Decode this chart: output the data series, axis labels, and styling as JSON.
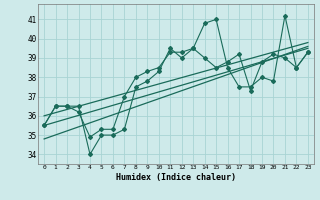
{
  "xlabel": "Humidex (Indice chaleur)",
  "bg_color": "#ceeaea",
  "grid_color": "#a8d4d4",
  "line_color": "#1a6b5a",
  "ylim": [
    33.5,
    41.8
  ],
  "xlim": [
    -0.5,
    23.5
  ],
  "yticks": [
    34,
    35,
    36,
    37,
    38,
    39,
    40,
    41
  ],
  "xticks": [
    0,
    1,
    2,
    3,
    4,
    5,
    6,
    7,
    8,
    9,
    10,
    11,
    12,
    13,
    14,
    15,
    16,
    17,
    18,
    19,
    20,
    21,
    22,
    23
  ],
  "series1": [
    35.5,
    36.5,
    36.5,
    36.5,
    34.0,
    35.0,
    35.0,
    35.3,
    37.5,
    37.8,
    38.3,
    39.5,
    39.0,
    39.5,
    40.8,
    41.0,
    38.5,
    37.5,
    37.5,
    38.0,
    37.8,
    41.2,
    38.5,
    39.3
  ],
  "series2": [
    35.5,
    36.5,
    36.5,
    36.2,
    34.9,
    35.3,
    35.3,
    37.0,
    38.0,
    38.3,
    38.5,
    39.3,
    39.3,
    39.5,
    39.0,
    38.5,
    38.8,
    39.2,
    37.3,
    38.8,
    39.2,
    39.0,
    38.5,
    39.3
  ],
  "trend1_x": [
    0,
    23
  ],
  "trend1_y": [
    35.5,
    39.5
  ],
  "trend2_x": [
    0,
    23
  ],
  "trend2_y": [
    36.0,
    39.8
  ],
  "trend3_x": [
    0,
    23
  ],
  "trend3_y": [
    34.8,
    39.6
  ]
}
